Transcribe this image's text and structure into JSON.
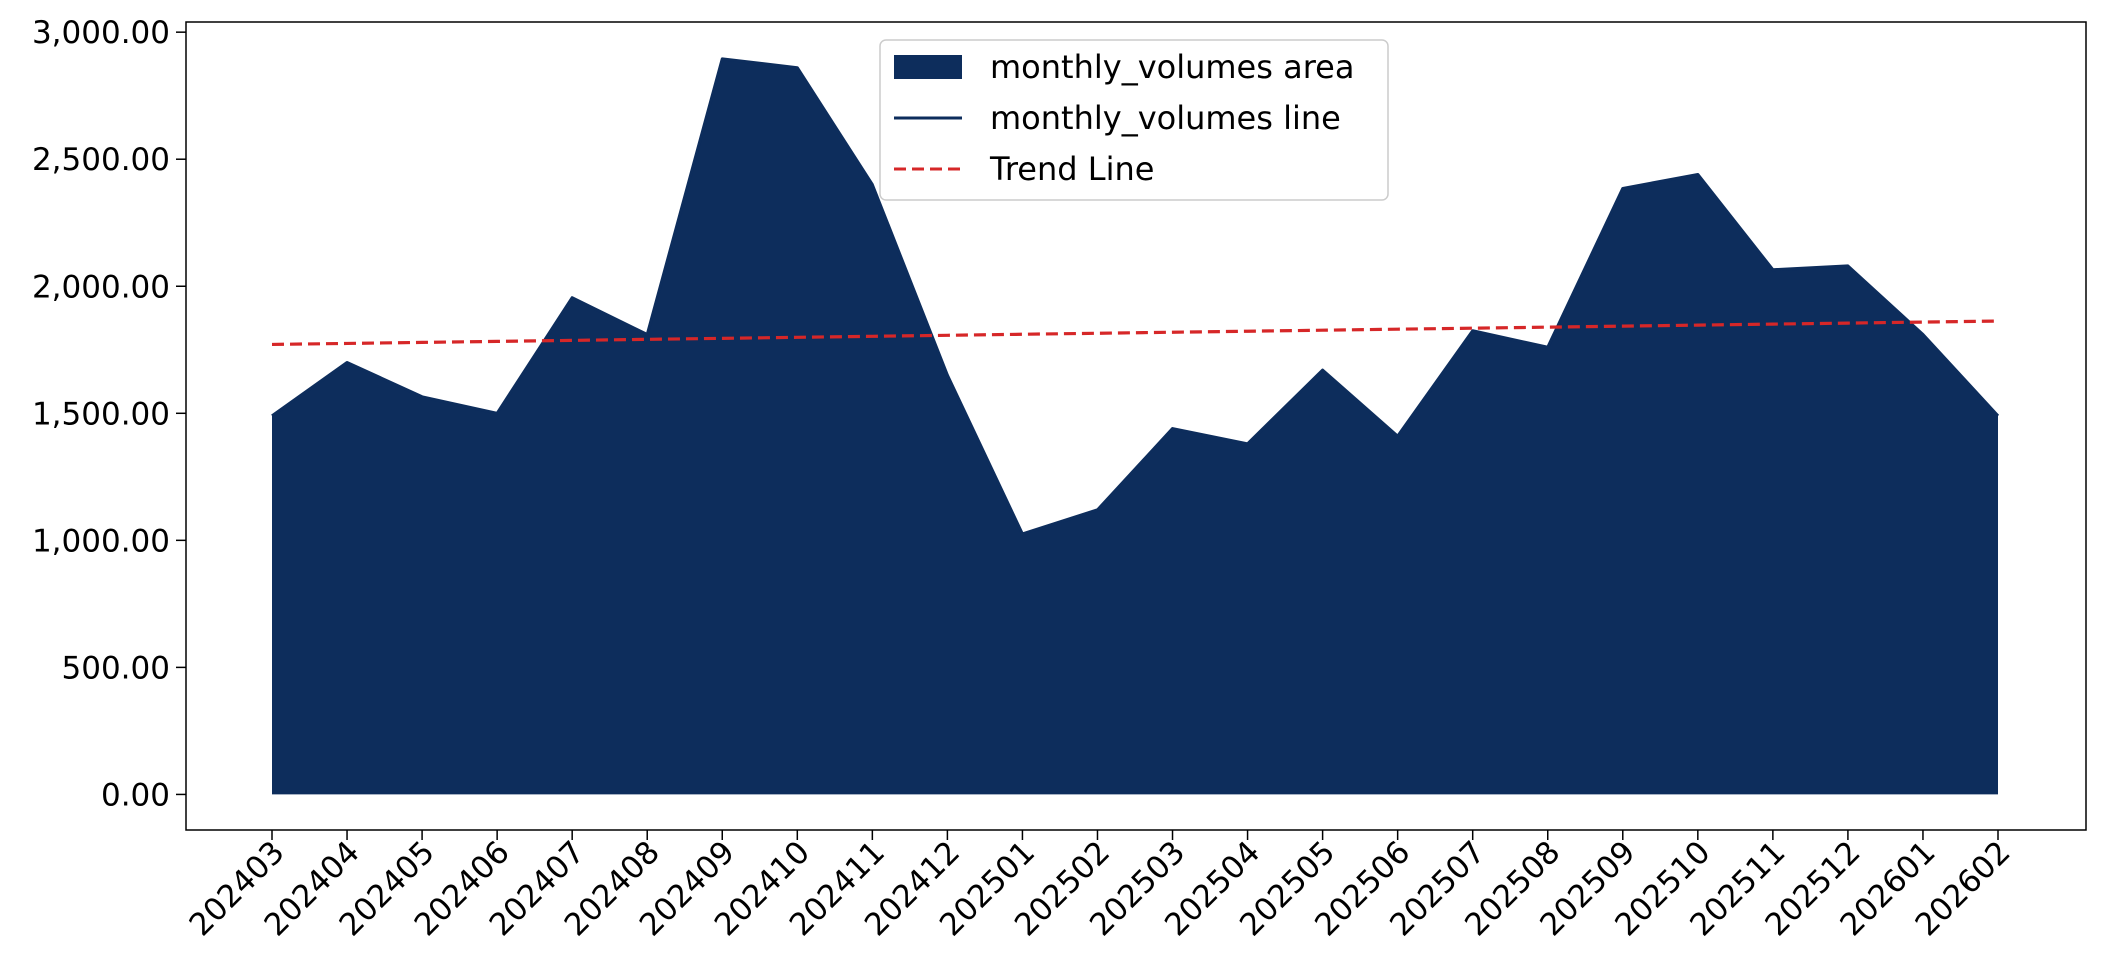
{
  "chart_data": {
    "type": "area",
    "title": "",
    "xlabel": "",
    "ylabel": "",
    "categories": [
      "202403",
      "202404",
      "202405",
      "202406",
      "202407",
      "202408",
      "202409",
      "202410",
      "202411",
      "202412",
      "202501",
      "202502",
      "202503",
      "202504",
      "202505",
      "202506",
      "202507",
      "202508",
      "202509",
      "202510",
      "202511",
      "202512",
      "202601",
      "202602"
    ],
    "series": [
      {
        "name": "monthly_volumes area",
        "kind": "area",
        "color": "#0d2d5c",
        "values": [
          1490,
          1700,
          1565,
          1500,
          1955,
          1810,
          2895,
          2860,
          2400,
          1650,
          1025,
          1120,
          1440,
          1380,
          1670,
          1410,
          1825,
          1760,
          2385,
          2440,
          2065,
          2080,
          1810,
          1490
        ]
      },
      {
        "name": "monthly_volumes line",
        "kind": "line",
        "color": "#0d2d5c",
        "values": [
          1490,
          1700,
          1565,
          1500,
          1955,
          1810,
          2895,
          2860,
          2400,
          1650,
          1025,
          1120,
          1440,
          1380,
          1670,
          1410,
          1825,
          1760,
          2385,
          2440,
          2065,
          2080,
          1810,
          1490
        ]
      },
      {
        "name": "Trend Line",
        "kind": "line",
        "style": "dashed",
        "color": "#d62728",
        "values": [
          1771,
          1775,
          1779,
          1783,
          1787,
          1791,
          1795,
          1799,
          1803,
          1807,
          1811,
          1815,
          1819,
          1823,
          1827,
          1831,
          1835,
          1839,
          1843,
          1847,
          1851,
          1855,
          1859,
          1863
        ]
      }
    ],
    "ylim": [
      -140,
      3040
    ],
    "yticks": [
      0,
      500,
      1000,
      1500,
      2000,
      2500,
      3000
    ],
    "ytick_labels": [
      "0.00",
      "500.00",
      "1,000.00",
      "1,500.00",
      "2,000.00",
      "2,500.00",
      "3,000.00"
    ],
    "grid": false,
    "legend_position": "top-center"
  }
}
